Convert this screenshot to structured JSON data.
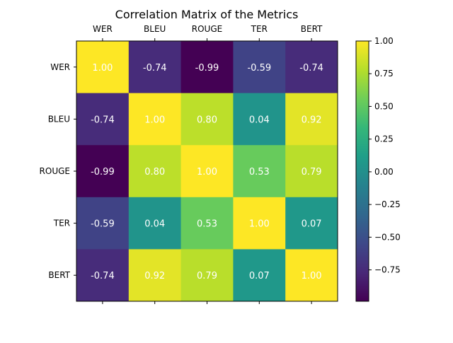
{
  "chart_data": {
    "type": "heatmap",
    "title": "Correlation Matrix of the Metrics",
    "labels": [
      "WER",
      "BLEU",
      "ROUGE",
      "TER",
      "BERT"
    ],
    "matrix": [
      [
        1.0,
        -0.74,
        -0.99,
        -0.59,
        -0.74
      ],
      [
        -0.74,
        1.0,
        0.8,
        0.04,
        0.92
      ],
      [
        -0.99,
        0.8,
        1.0,
        0.53,
        0.79
      ],
      [
        -0.59,
        0.04,
        0.53,
        1.0,
        0.07
      ],
      [
        -0.74,
        0.92,
        0.79,
        0.07,
        1.0
      ]
    ],
    "colormap": "viridis",
    "vmin": -0.99,
    "vmax": 1.0,
    "colorbar_ticks": [
      "1.00",
      "0.75",
      "0.50",
      "0.25",
      "0.00",
      "−0.25",
      "−0.50",
      "−0.75"
    ],
    "colorbar_tick_values": [
      1.0,
      0.75,
      0.5,
      0.25,
      0.0,
      -0.25,
      -0.5,
      -0.75
    ],
    "x_tick_position": "top",
    "annotation_color": "#ffffff"
  }
}
